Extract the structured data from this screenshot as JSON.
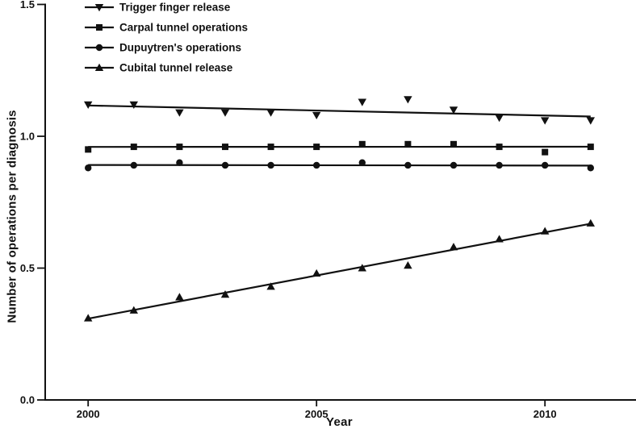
{
  "figure": {
    "background": "#ffffff",
    "ink_color": "#111111"
  },
  "chart_data": {
    "type": "scatter",
    "title": "",
    "xlabel": "Year",
    "ylabel": "Number of operations per diagnosis",
    "x": [
      2000,
      2001,
      2002,
      2003,
      2004,
      2005,
      2006,
      2007,
      2008,
      2009,
      2010,
      2011
    ],
    "xlim": [
      1999.06,
      2011.94
    ],
    "ylim": [
      0,
      1.5
    ],
    "xticks": [
      2000,
      2005,
      2010
    ],
    "xtick_labels": [
      "2000",
      "2005",
      "2010"
    ],
    "yticks": [
      0,
      0.5,
      1,
      1.5
    ],
    "ytick_labels": [
      "0.0",
      "0.5",
      "1.0",
      "1.5"
    ],
    "grid": false,
    "legend_position": "top-left",
    "series": [
      {
        "name": "Trigger finger release",
        "marker": "triangle-down",
        "trendline": "linear",
        "values": [
          1.12,
          1.12,
          1.09,
          1.09,
          1.09,
          1.08,
          1.13,
          1.14,
          1.1,
          1.07,
          1.06,
          1.06
        ]
      },
      {
        "name": "Carpal tunnel operations",
        "marker": "square",
        "trendline": "linear",
        "values": [
          0.95,
          0.96,
          0.96,
          0.96,
          0.96,
          0.96,
          0.97,
          0.97,
          0.97,
          0.96,
          0.94,
          0.96
        ]
      },
      {
        "name": "Dupuytren's operations",
        "marker": "circle",
        "trendline": "linear",
        "values": [
          0.88,
          0.89,
          0.9,
          0.89,
          0.89,
          0.89,
          0.9,
          0.89,
          0.89,
          0.89,
          0.89,
          0.88
        ]
      },
      {
        "name": "Cubital tunnel release",
        "marker": "triangle-up",
        "trendline": "linear",
        "values": [
          0.31,
          0.34,
          0.39,
          0.4,
          0.43,
          0.48,
          0.5,
          0.51,
          0.58,
          0.61,
          0.64,
          0.67
        ]
      }
    ]
  }
}
